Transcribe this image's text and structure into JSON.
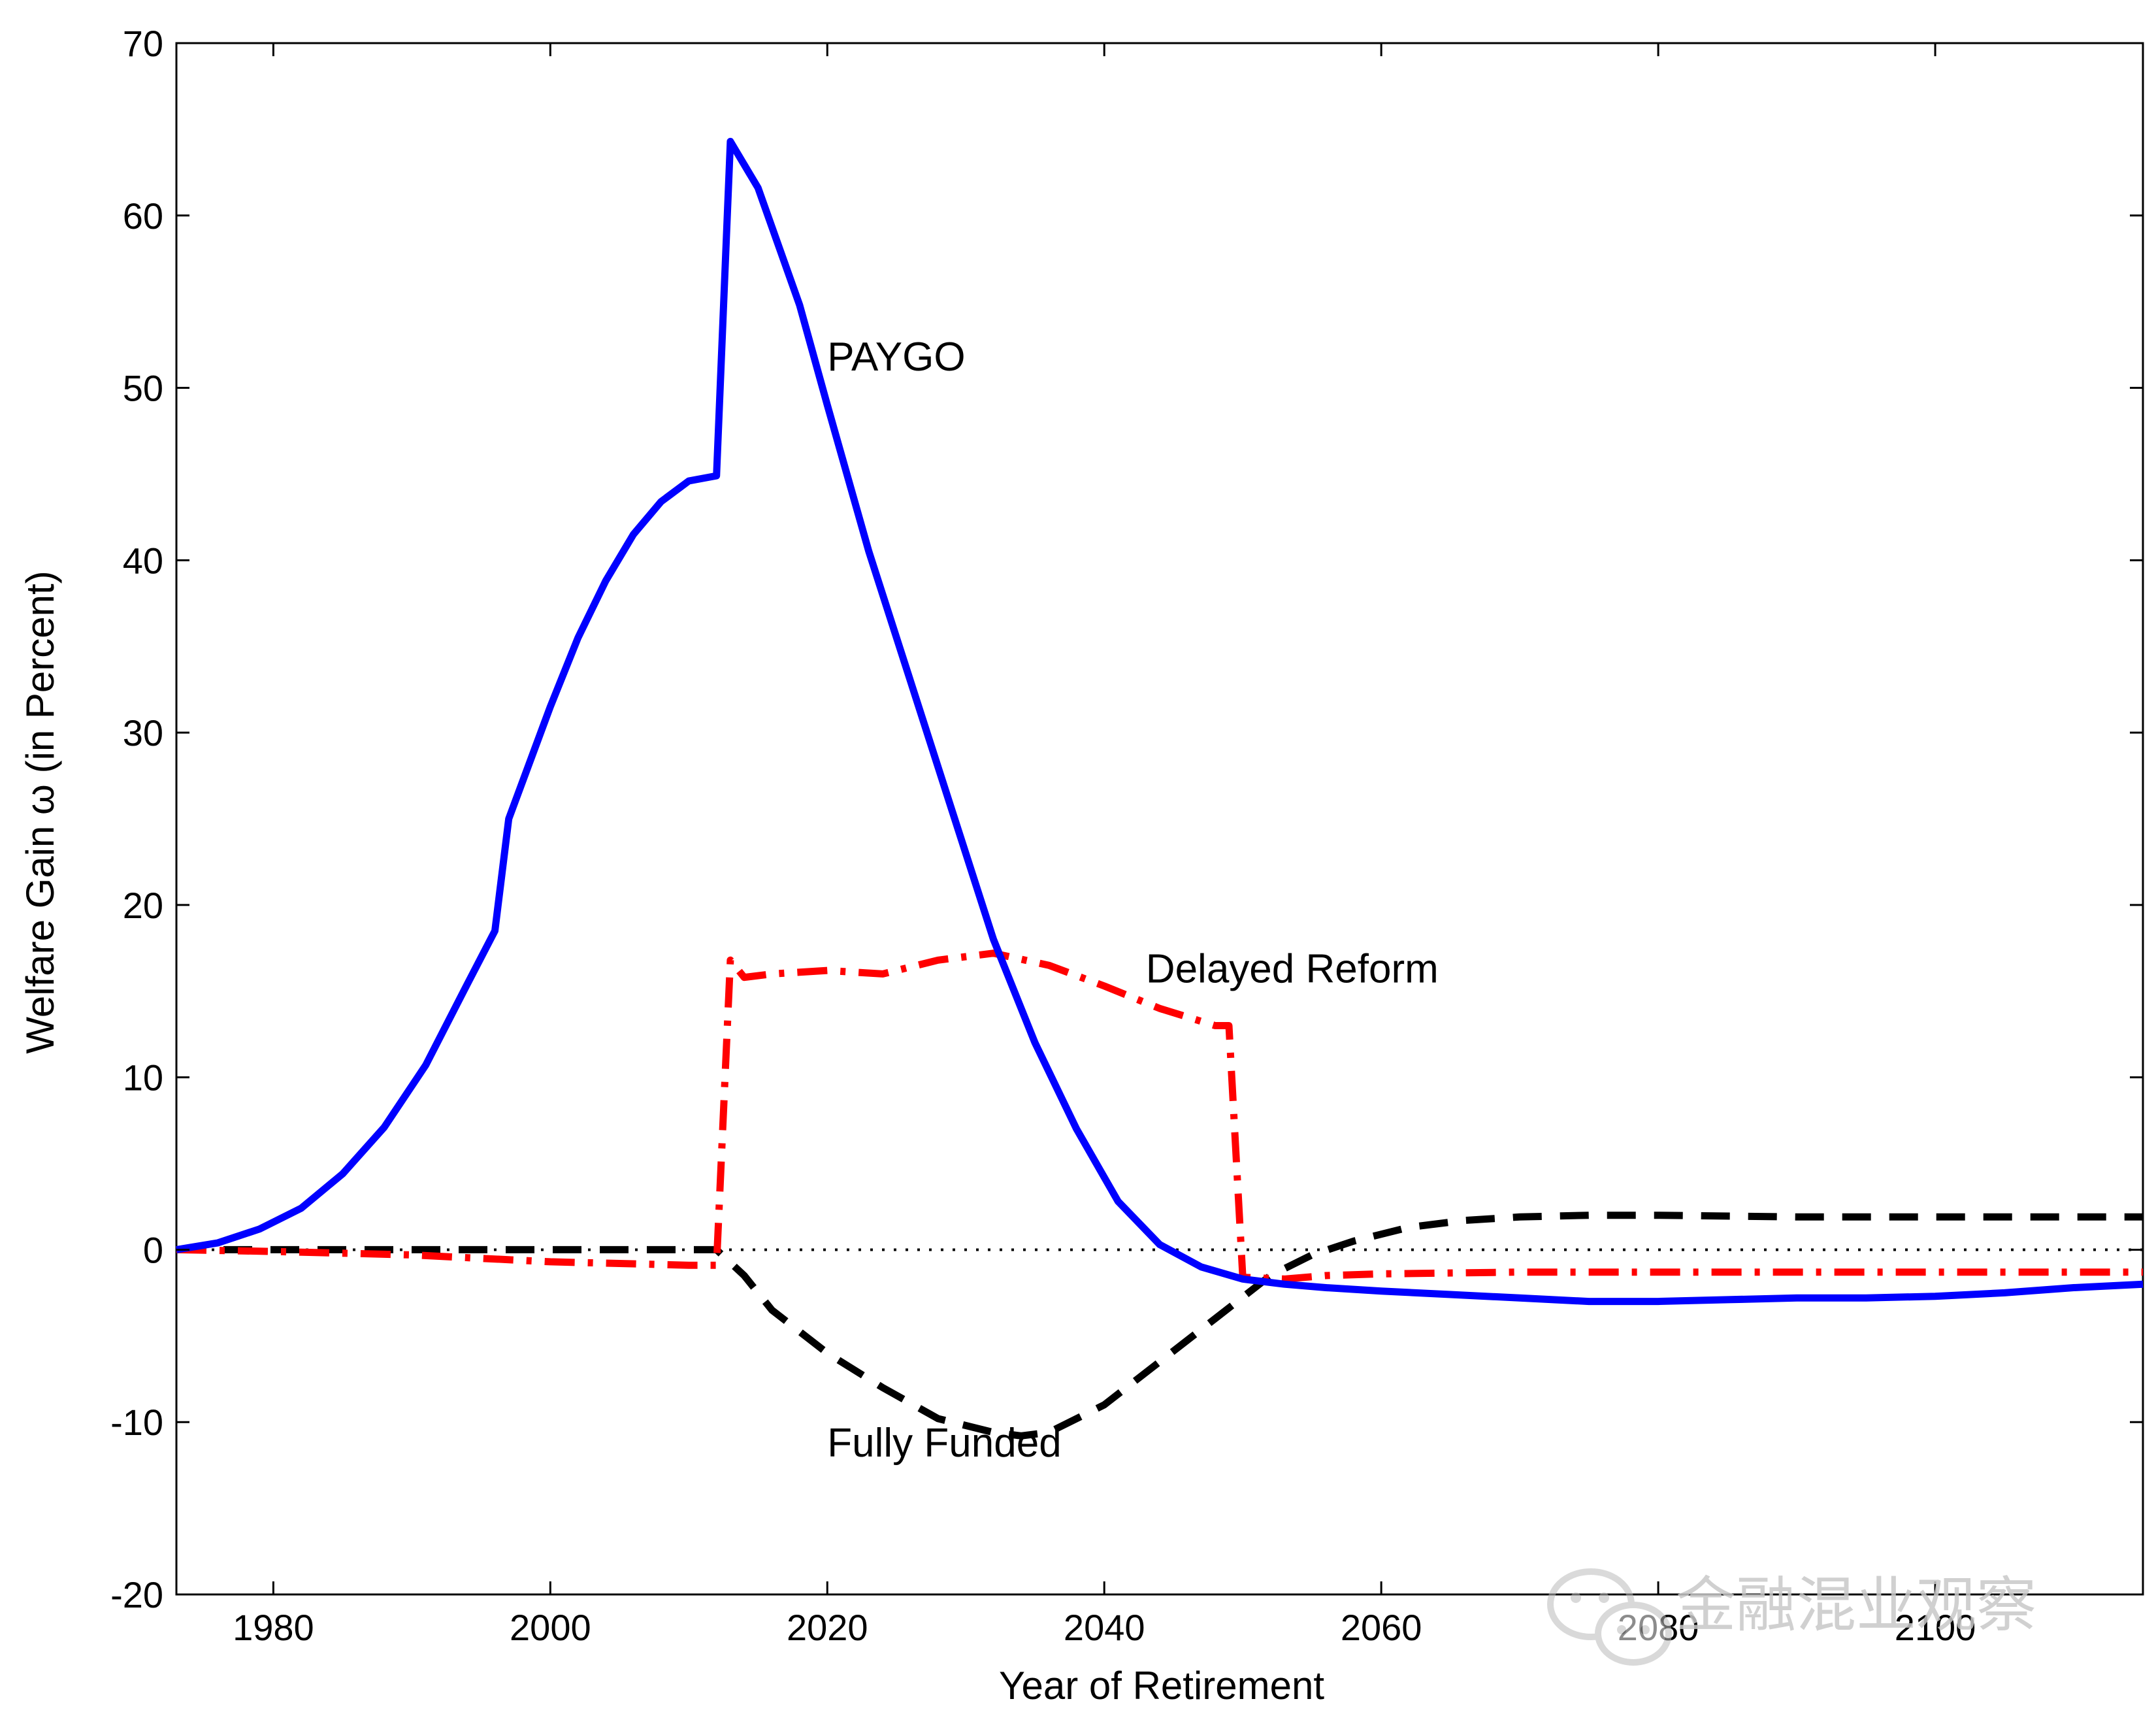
{
  "watermark": {
    "text": "金融混业观察"
  },
  "chart_data": {
    "type": "line",
    "title": "",
    "xlabel": "Year of Retirement",
    "ylabel": "Welfare Gain ω (in Percent)",
    "xlim": [
      1973,
      2115
    ],
    "ylim": [
      -20,
      70
    ],
    "xticks": [
      1980,
      2000,
      2020,
      2040,
      2060,
      2080,
      2100
    ],
    "yticks": [
      -20,
      -10,
      0,
      10,
      20,
      30,
      40,
      50,
      60,
      70
    ],
    "grid": false,
    "legend": "none",
    "reference_line": {
      "y": 0,
      "style": "dotted",
      "color": "#000000"
    },
    "series": [
      {
        "name": "PAYGO",
        "color": "#0000ff",
        "style": "solid",
        "x": [
          1973,
          1976,
          1979,
          1982,
          1985,
          1988,
          1991,
          1994,
          1996,
          1997,
          2000,
          2002,
          2004,
          2006,
          2008,
          2010,
          2012,
          2013,
          2015,
          2018,
          2020,
          2023,
          2026,
          2029,
          2032,
          2035,
          2038,
          2041,
          2044,
          2047,
          2050,
          2053,
          2056,
          2060,
          2065,
          2070,
          2075,
          2080,
          2085,
          2090,
          2095,
          2100,
          2105,
          2110,
          2115
        ],
        "y": [
          0,
          0.4,
          1.2,
          2.4,
          4.4,
          7.1,
          10.7,
          15.4,
          18.5,
          25,
          31.5,
          35.5,
          38.8,
          41.5,
          43.4,
          44.6,
          44.9,
          64.3,
          61.6,
          54.8,
          49,
          40.5,
          33,
          25.5,
          18,
          12,
          7,
          2.8,
          0.3,
          -1,
          -1.7,
          -2,
          -2.2,
          -2.4,
          -2.6,
          -2.8,
          -3,
          -3,
          -2.9,
          -2.8,
          -2.8,
          -2.7,
          -2.5,
          -2.2,
          -2
        ]
      },
      {
        "name": "Delayed Reform",
        "color": "#ff0000",
        "style": "dash-dot",
        "x": [
          1973,
          1980,
          1990,
          2000,
          2010,
          2012,
          2013,
          2014,
          2016,
          2020,
          2024,
          2028,
          2032,
          2036,
          2040,
          2044,
          2048,
          2049,
          2050,
          2053,
          2056,
          2060,
          2070,
          2080,
          2090,
          2100,
          2110,
          2115
        ],
        "y": [
          0,
          -0.1,
          -0.3,
          -0.7,
          -0.9,
          -0.9,
          16.8,
          15.8,
          16,
          16.2,
          16,
          16.8,
          17.2,
          16.5,
          15.3,
          14,
          13,
          13,
          -1.6,
          -1.7,
          -1.5,
          -1.4,
          -1.3,
          -1.3,
          -1.3,
          -1.3,
          -1.3,
          -1.3
        ]
      },
      {
        "name": "Fully Funded",
        "color": "#000000",
        "style": "dashed",
        "x": [
          1973,
          1990,
          2012,
          2014,
          2016,
          2020,
          2024,
          2028,
          2032,
          2034,
          2036,
          2040,
          2044,
          2048,
          2052,
          2055,
          2058,
          2062,
          2066,
          2070,
          2075,
          2080,
          2090,
          2100,
          2115
        ],
        "y": [
          0,
          0,
          0,
          -1.5,
          -3.5,
          -6,
          -8,
          -9.8,
          -10.6,
          -10.8,
          -10.6,
          -9,
          -6.5,
          -4,
          -1.5,
          -0.3,
          0.5,
          1.3,
          1.7,
          1.9,
          2,
          2,
          1.9,
          1.9,
          1.9
        ]
      }
    ],
    "annotations": [
      {
        "text": "PAYGO",
        "x": 2020,
        "y": 51
      },
      {
        "text": "Delayed Reform",
        "x": 2043,
        "y": 15.5
      },
      {
        "text": "Fully Funded",
        "x": 2020,
        "y": -12
      }
    ]
  }
}
